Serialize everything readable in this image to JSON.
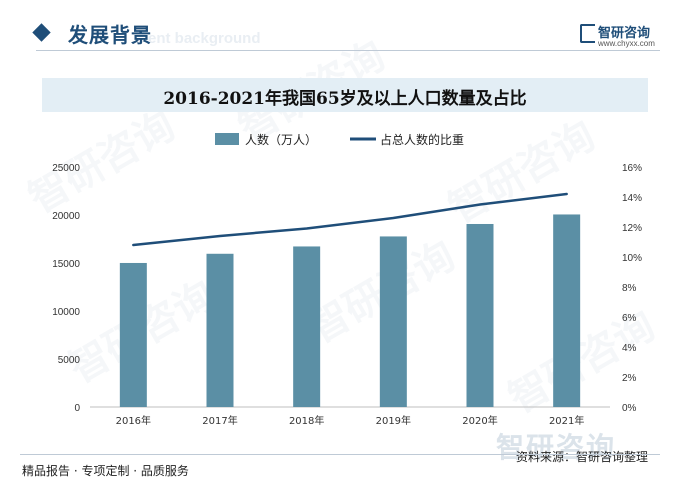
{
  "header": {
    "section_title": "发展背景",
    "section_title_en": "ent background",
    "brand_name": "智研咨询",
    "brand_url": "www.chyxx.com"
  },
  "chart_data": {
    "type": "bar+line",
    "title": "2016-2021年我国65岁及以上人口数量及占比",
    "categories": [
      "2016年",
      "2017年",
      "2018年",
      "2019年",
      "2020年",
      "2021年"
    ],
    "series": [
      {
        "name": "人数（万人）",
        "type": "bar",
        "axis": "left",
        "color": "#5b8fa5",
        "values": [
          15003,
          15961,
          16724,
          17767,
          19064,
          20056
        ]
      },
      {
        "name": "占总人数的比重",
        "type": "line",
        "axis": "right",
        "color": "#1f4e79",
        "values": [
          10.8,
          11.4,
          11.9,
          12.6,
          13.5,
          14.2
        ]
      }
    ],
    "y_left": {
      "min": 0,
      "max": 25000,
      "ticks": [
        "0",
        "5000",
        "10000",
        "15000",
        "20000",
        "25000"
      ]
    },
    "y_right": {
      "min": 0,
      "max": 16,
      "ticks": [
        "0%",
        "2%",
        "4%",
        "6%",
        "8%",
        "10%",
        "12%",
        "14%",
        "16%"
      ]
    },
    "legend": "top-center",
    "grid": false
  },
  "footer": {
    "tagline": "精品报告 · 专项定制 · 品质服务",
    "source": "资料来源：智研咨询整理",
    "logo_text": "智研咨询"
  }
}
